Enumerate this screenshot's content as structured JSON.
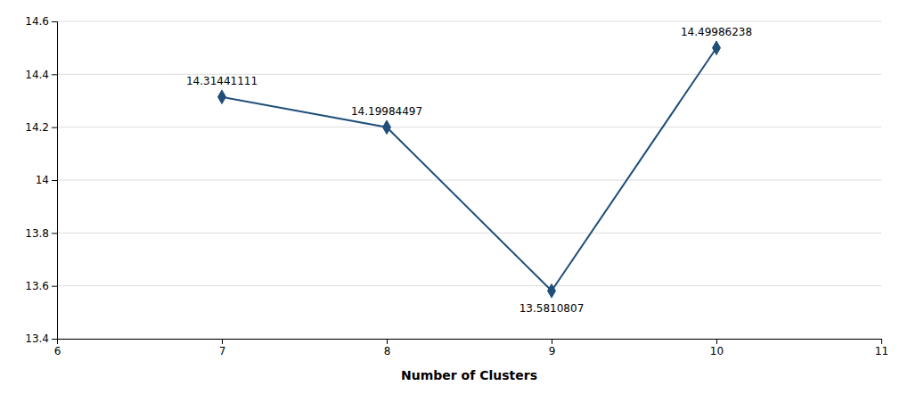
{
  "chart_data": {
    "type": "line",
    "x": [
      7,
      8,
      9,
      10
    ],
    "values": [
      14.31441111,
      14.19984497,
      13.5810807,
      14.49986238
    ],
    "xlabel": "Number of Clusters",
    "xlim": [
      6,
      11
    ],
    "ylim": [
      13.4,
      14.6
    ],
    "xticks": [
      6,
      7,
      8,
      9,
      10,
      11
    ],
    "yticks": [
      13.4,
      13.6,
      13.8,
      14.0,
      14.2,
      14.4,
      14.6
    ],
    "color": "#1F4E79",
    "marker": "diamond",
    "grid": true,
    "data_labels": true
  }
}
